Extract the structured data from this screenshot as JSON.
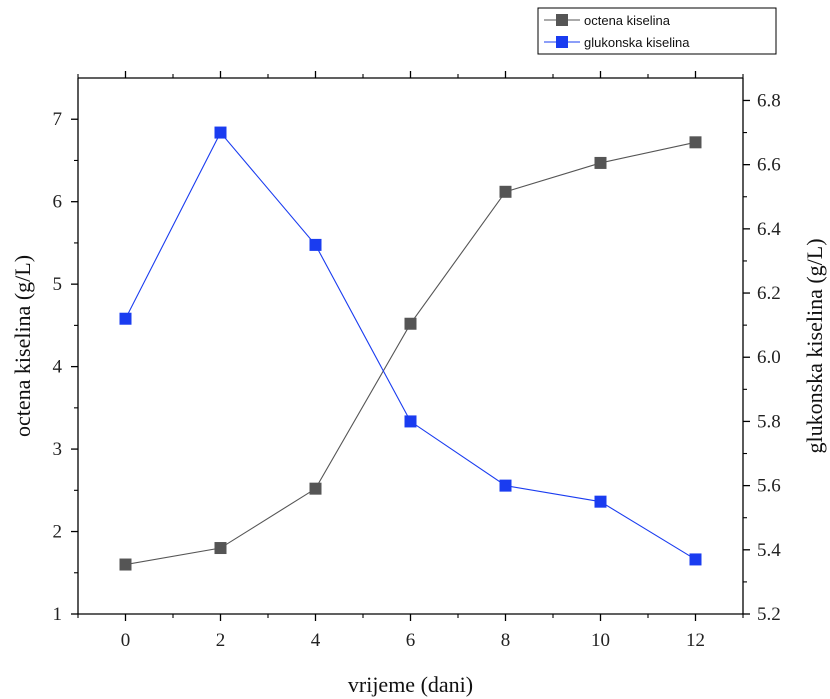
{
  "chart_data": {
    "type": "line",
    "x": [
      0,
      2,
      4,
      6,
      8,
      10,
      12
    ],
    "xlabel": "vrijeme (dani)",
    "xlim": [
      -1,
      13
    ],
    "x_ticks": [
      "0",
      "2",
      "4",
      "6",
      "8",
      "10",
      "12"
    ],
    "left_axis": {
      "label": "octena kiselina (g/L)",
      "ylim": [
        1,
        7.5
      ],
      "ticks": [
        "1",
        "2",
        "3",
        "4",
        "5",
        "6",
        "7"
      ]
    },
    "right_axis": {
      "label": "glukonska kiselina (g/L)",
      "ylim": [
        5.2,
        6.87
      ],
      "ticks": [
        "5.2",
        "5.4",
        "5.6",
        "5.8",
        "6.0",
        "6.2",
        "6.4",
        "6.6",
        "6.8"
      ]
    },
    "series": [
      {
        "name": "octena kiselina",
        "axis": "left",
        "color": "#555555",
        "marker": "square",
        "values": [
          1.6,
          1.8,
          2.52,
          4.52,
          6.12,
          6.47,
          6.72
        ]
      },
      {
        "name": "glukonska kiselina",
        "axis": "right",
        "color": "#1a3cf0",
        "marker": "square",
        "values": [
          6.12,
          6.7,
          6.35,
          5.8,
          5.6,
          5.55,
          5.37
        ]
      }
    ],
    "legend_position": "top-right",
    "grid": false
  }
}
